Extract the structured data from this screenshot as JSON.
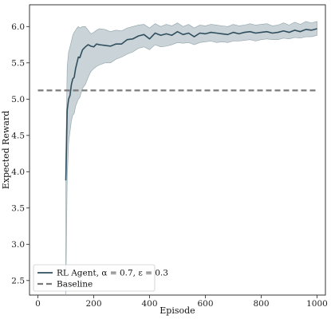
{
  "chart_data": {
    "type": "line",
    "xlabel": "Episode",
    "ylabel": "Expected Reward",
    "xlim": [
      -30,
      1030
    ],
    "ylim": [
      2.3,
      6.3
    ],
    "xticks": [
      0,
      200,
      400,
      600,
      800,
      1000
    ],
    "yticks": [
      2.5,
      3.0,
      3.5,
      4.0,
      4.5,
      5.0,
      5.5,
      6.0
    ],
    "xtick_labels": [
      "0",
      "200",
      "400",
      "600",
      "800",
      "1000"
    ],
    "ytick_labels": [
      "2.5",
      "3.0",
      "3.5",
      "4.0",
      "4.5",
      "5.0",
      "5.5",
      "6.0"
    ],
    "grid": false,
    "legend_position": "lower-left",
    "series": [
      {
        "name": "RL Agent, α = 0.7, ε = 0.3",
        "kind": "line_with_band",
        "color": "#2f4f5f",
        "band_color": "#aebcc2",
        "x": [
          100,
          105,
          110,
          115,
          120,
          125,
          130,
          135,
          140,
          145,
          150,
          160,
          170,
          180,
          190,
          200,
          210,
          220,
          240,
          260,
          280,
          300,
          320,
          340,
          360,
          380,
          400,
          420,
          440,
          460,
          480,
          500,
          520,
          540,
          560,
          580,
          600,
          620,
          640,
          660,
          680,
          700,
          720,
          740,
          760,
          780,
          800,
          820,
          840,
          860,
          880,
          900,
          920,
          940,
          960,
          980,
          1000
        ],
        "y": [
          3.88,
          4.85,
          5.0,
          5.05,
          5.2,
          5.28,
          5.3,
          5.42,
          5.5,
          5.58,
          5.57,
          5.68,
          5.72,
          5.75,
          5.73,
          5.72,
          5.76,
          5.75,
          5.74,
          5.73,
          5.76,
          5.76,
          5.82,
          5.83,
          5.87,
          5.89,
          5.83,
          5.91,
          5.88,
          5.9,
          5.88,
          5.93,
          5.89,
          5.91,
          5.86,
          5.91,
          5.9,
          5.92,
          5.91,
          5.9,
          5.89,
          5.92,
          5.9,
          5.92,
          5.93,
          5.91,
          5.92,
          5.93,
          5.91,
          5.92,
          5.94,
          5.92,
          5.95,
          5.93,
          5.96,
          5.95,
          5.97
        ],
        "lower": [
          2.3,
          3.9,
          4.4,
          4.55,
          4.7,
          4.78,
          4.8,
          4.9,
          4.95,
          5.0,
          5.02,
          5.15,
          5.2,
          5.3,
          5.38,
          5.42,
          5.45,
          5.47,
          5.5,
          5.5,
          5.55,
          5.58,
          5.62,
          5.65,
          5.7,
          5.72,
          5.68,
          5.75,
          5.72,
          5.73,
          5.75,
          5.78,
          5.77,
          5.78,
          5.75,
          5.78,
          5.79,
          5.8,
          5.78,
          5.79,
          5.78,
          5.8,
          5.8,
          5.81,
          5.82,
          5.8,
          5.82,
          5.83,
          5.82,
          5.82,
          5.84,
          5.83,
          5.85,
          5.84,
          5.86,
          5.86,
          5.88
        ],
        "upper": [
          4.2,
          5.45,
          5.65,
          5.72,
          5.8,
          5.88,
          5.92,
          5.95,
          5.98,
          6.0,
          5.98,
          6.0,
          6.0,
          5.95,
          5.9,
          5.92,
          5.95,
          5.97,
          5.96,
          5.93,
          5.95,
          5.94,
          5.98,
          6.0,
          6.02,
          6.03,
          5.98,
          6.04,
          6.0,
          6.03,
          6.01,
          6.05,
          6.0,
          6.03,
          5.98,
          6.02,
          6.01,
          6.03,
          6.02,
          6.01,
          6.0,
          6.03,
          6.01,
          6.02,
          6.04,
          6.02,
          6.03,
          6.04,
          6.01,
          6.02,
          6.05,
          6.02,
          6.06,
          6.03,
          6.07,
          6.05,
          6.07
        ]
      },
      {
        "name": "Baseline",
        "kind": "dashed_line",
        "color": "#7a7a7a",
        "x": [
          0,
          1000
        ],
        "y": [
          5.12,
          5.12
        ]
      }
    ]
  }
}
